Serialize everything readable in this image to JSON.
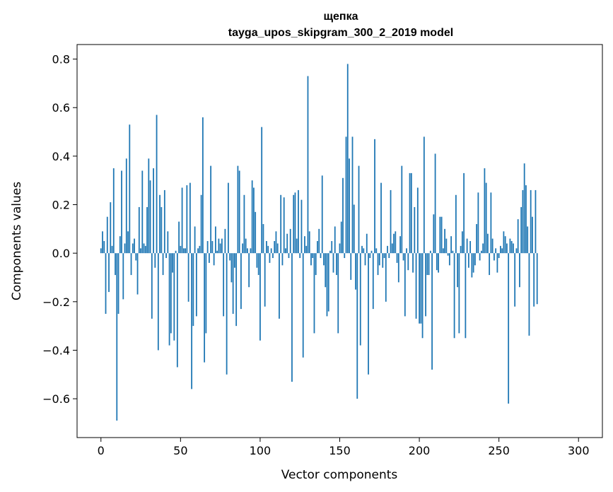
{
  "chart_data": {
    "type": "bar",
    "title": "щепка",
    "subtitle": "tayga_upos_skipgram_300_2_2019 model",
    "xlabel": "Vector components",
    "ylabel": "Components values",
    "xlim": [
      -15,
      315
    ],
    "ylim": [
      -0.76,
      0.86
    ],
    "x_ticks": [
      0,
      50,
      100,
      150,
      200,
      250,
      300
    ],
    "y_ticks": [
      -0.6,
      -0.4,
      -0.2,
      0.0,
      0.2,
      0.4,
      0.6,
      0.8
    ],
    "x_tick_labels": [
      "0",
      "50",
      "100",
      "150",
      "200",
      "250",
      "300"
    ],
    "y_tick_labels": [
      "−0.6",
      "−0.4",
      "−0.2",
      "0.0",
      "0.2",
      "0.4",
      "0.6",
      "0.8"
    ],
    "bar_color": "#1f77b4",
    "grid": false,
    "values": [
      0.02,
      0.09,
      0.05,
      -0.25,
      0.15,
      -0.16,
      0.21,
      0.03,
      0.35,
      -0.09,
      -0.69,
      -0.25,
      0.07,
      0.34,
      -0.19,
      0.04,
      0.39,
      0.09,
      0.53,
      -0.09,
      0.04,
      0.06,
      -0.03,
      -0.17,
      0.19,
      0.02,
      0.34,
      0.04,
      0.03,
      0.19,
      0.39,
      0.3,
      -0.27,
      0.35,
      -0.06,
      0.57,
      -0.4,
      0.24,
      0.19,
      -0.09,
      0.26,
      -0.02,
      0.09,
      -0.38,
      -0.33,
      -0.08,
      -0.36,
      0.01,
      -0.47,
      0.13,
      0.03,
      0.27,
      0.02,
      0.02,
      0.28,
      -0.2,
      0.29,
      -0.56,
      -0.3,
      0.11,
      -0.26,
      0.02,
      0.03,
      0.24,
      0.56,
      -0.45,
      -0.33,
      0.05,
      -0.04,
      0.36,
      0.05,
      -0.05,
      0.11,
      0.01,
      0.06,
      0.04,
      0.06,
      -0.26,
      0.1,
      -0.5,
      0.29,
      -0.03,
      -0.12,
      -0.25,
      -0.06,
      -0.3,
      0.36,
      0.34,
      -0.23,
      0.04,
      0.24,
      0.06,
      0.02,
      -0.14,
      0.02,
      0.3,
      0.27,
      0.17,
      -0.06,
      -0.09,
      -0.36,
      0.52,
      0.12,
      -0.22,
      0.05,
      0.03,
      -0.04,
      0.02,
      -0.02,
      0.05,
      0.09,
      0.04,
      -0.27,
      0.24,
      -0.05,
      0.23,
      0.02,
      0.08,
      -0.02,
      0.1,
      -0.53,
      0.24,
      0.25,
      0.06,
      0.26,
      -0.02,
      0.22,
      -0.43,
      0.07,
      0.03,
      0.73,
      0.09,
      -0.05,
      -0.02,
      -0.33,
      -0.09,
      0.05,
      0.1,
      -0.02,
      0.32,
      -0.05,
      -0.14,
      -0.26,
      -0.24,
      0.01,
      0.05,
      -0.08,
      0.11,
      -0.09,
      -0.33,
      0.04,
      0.13,
      0.31,
      -0.02,
      0.48,
      0.78,
      0.39,
      -0.11,
      0.48,
      0.2,
      -0.15,
      -0.6,
      0.36,
      -0.38,
      0.03,
      0.02,
      -0.05,
      0.08,
      -0.5,
      -0.02,
      0.01,
      -0.23,
      0.47,
      0.02,
      -0.09,
      -0.05,
      0.29,
      -0.06,
      -0.02,
      -0.2,
      0.03,
      -0.02,
      0.26,
      0.04,
      0.08,
      0.09,
      -0.04,
      -0.12,
      0.07,
      0.36,
      -0.03,
      -0.26,
      0.02,
      -0.07,
      0.33,
      0.33,
      -0.08,
      0.19,
      -0.27,
      0.27,
      -0.29,
      -0.29,
      -0.35,
      0.48,
      -0.26,
      -0.09,
      -0.09,
      0.01,
      -0.48,
      0.16,
      0.41,
      -0.07,
      -0.08,
      0.15,
      0.15,
      0.02,
      0.1,
      0.06,
      -0.01,
      -0.05,
      0.07,
      0.01,
      -0.35,
      0.24,
      -0.14,
      -0.33,
      0.03,
      0.09,
      0.33,
      -0.35,
      0.06,
      -0.06,
      0.05,
      -0.1,
      -0.08,
      -0.05,
      0.12,
      0.25,
      -0.03,
      0.01,
      0.04,
      0.35,
      0.29,
      0.08,
      -0.09,
      0.25,
      0.06,
      -0.03,
      0.02,
      -0.08,
      -0.02,
      0.03,
      0.02,
      0.09,
      0.07,
      0.04,
      -0.62,
      0.06,
      0.05,
      0.04,
      -0.22,
      0.02,
      0.14,
      -0.14,
      0.19,
      0.26,
      0.37,
      0.28,
      0.11,
      -0.34,
      0.26,
      0.15,
      -0.22,
      0.26,
      -0.21
    ]
  }
}
